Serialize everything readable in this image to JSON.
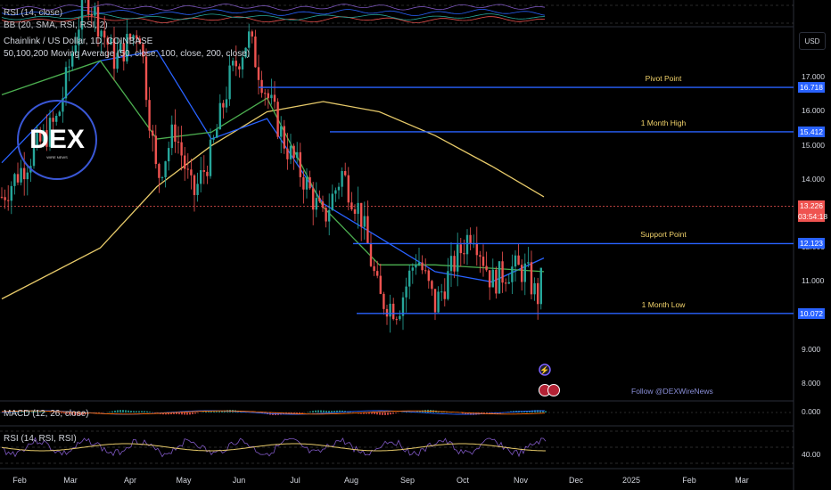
{
  "header": {
    "rsi_top": "RSI (14, close)",
    "bb_top": "BB (20, SMA, RSI, RSI, 2)",
    "symbol": "Chainlink / US Dollar, 1D, COINBASE",
    "ma_legend": "50,100,200 Moving Average (50, close, 100, close, 200, close)",
    "macd": "MACD (12, 26, close)",
    "rsi_bottom": "RSI (14, RSI, RSI)",
    "currency": "USD"
  },
  "logo": {
    "text": "DEX",
    "sub": "WIRE NEWS"
  },
  "follow_text": "Follow @DEXWireNews",
  "colors": {
    "up": "#26a69a",
    "down": "#ef5350",
    "ma50": "#4caf50",
    "ma100": "#2962ff",
    "ma200": "#e6c969",
    "level": "#2962ff",
    "label": "#f2d36b",
    "rsi": "#7e57c2"
  },
  "chart_data": {
    "type": "candlestick",
    "title": "Chainlink / US Dollar, 1D, COINBASE",
    "x_ticks": [
      "Feb",
      "Mar",
      "Apr",
      "May",
      "Jun",
      "Jul",
      "Aug",
      "Sep",
      "Oct",
      "Nov",
      "Dec",
      "2025",
      "Feb",
      "Mar"
    ],
    "y_ticks": [
      "17.000",
      "16.000",
      "15.000",
      "14.000",
      "13.000",
      "12.000",
      "11.000",
      "10.000",
      "9.000",
      "8.000"
    ],
    "ylim": [
      7.5,
      18.5
    ],
    "levels": [
      {
        "name": "Pivot Point",
        "value": 16.718,
        "label": "16.718"
      },
      {
        "name": "1 Month High",
        "value": 15.412,
        "label": "15.412"
      },
      {
        "name": "Support Point",
        "value": 12.123,
        "label": "12.123"
      },
      {
        "name": "1 Month Low",
        "value": 10.072,
        "label": "10.072"
      }
    ],
    "current_price": {
      "value": 13.226,
      "label": "13.226",
      "countdown": "03:54:18"
    },
    "close_path": [
      [
        "Feb",
        13.5
      ],
      [
        "Feb",
        15.8
      ],
      [
        "Mar",
        19.5
      ],
      [
        "Mar",
        17.5
      ],
      [
        "Apr",
        18.5
      ],
      [
        "Apr",
        14.0
      ],
      [
        "Apr",
        15.5
      ],
      [
        "May",
        13.5
      ],
      [
        "May",
        14.8
      ],
      [
        "May",
        17.0
      ],
      [
        "Jun",
        18.2
      ],
      [
        "Jun",
        16.5
      ],
      [
        "Jun",
        15.0
      ],
      [
        "Jul",
        14.0
      ],
      [
        "Jul",
        12.8
      ],
      [
        "Jul",
        14.2
      ],
      [
        "Aug",
        13.0
      ],
      [
        "Aug",
        10.5
      ],
      [
        "Aug",
        10.2
      ],
      [
        "Sep",
        11.8
      ],
      [
        "Sep",
        10.3
      ],
      [
        "Sep",
        11.5
      ],
      [
        "Oct",
        12.6
      ],
      [
        "Oct",
        11.0
      ],
      [
        "Oct",
        11.4
      ],
      [
        "Nov",
        11.3
      ],
      [
        "Nov",
        10.5
      ],
      [
        "Nov",
        12.0
      ],
      [
        "Nov",
        15.0
      ],
      [
        "Nov",
        13.2
      ]
    ],
    "ma_200": [
      [
        "Feb",
        10.5
      ],
      [
        "Mar",
        12.0
      ],
      [
        "Apr",
        13.8
      ],
      [
        "May",
        15.0
      ],
      [
        "Jun",
        16.0
      ],
      [
        "Jul",
        16.3
      ],
      [
        "Aug",
        16.0
      ],
      [
        "Sep",
        15.3
      ],
      [
        "Oct",
        14.4
      ],
      [
        "Nov",
        13.5
      ]
    ],
    "ma_100": [
      [
        "Feb",
        14.5
      ],
      [
        "Mar",
        17.5
      ],
      [
        "Apr",
        17.8
      ],
      [
        "May",
        15.2
      ],
      [
        "Jun",
        15.8
      ],
      [
        "Jul",
        13.3
      ],
      [
        "Aug",
        12.3
      ],
      [
        "Sep",
        11.3
      ],
      [
        "Oct",
        11.0
      ],
      [
        "Nov",
        11.7
      ]
    ],
    "ma_50": [
      [
        "Feb",
        16.5
      ],
      [
        "Mar",
        17.5
      ],
      [
        "Apr",
        15.2
      ],
      [
        "May",
        15.4
      ],
      [
        "Jun",
        16.4
      ],
      [
        "Jul",
        13.2
      ],
      [
        "Aug",
        11.5
      ],
      [
        "Sep",
        11.5
      ],
      [
        "Oct",
        11.4
      ],
      [
        "Nov",
        11.3
      ]
    ],
    "macd_tick": "0.000",
    "rsi_tick": "40.00"
  }
}
